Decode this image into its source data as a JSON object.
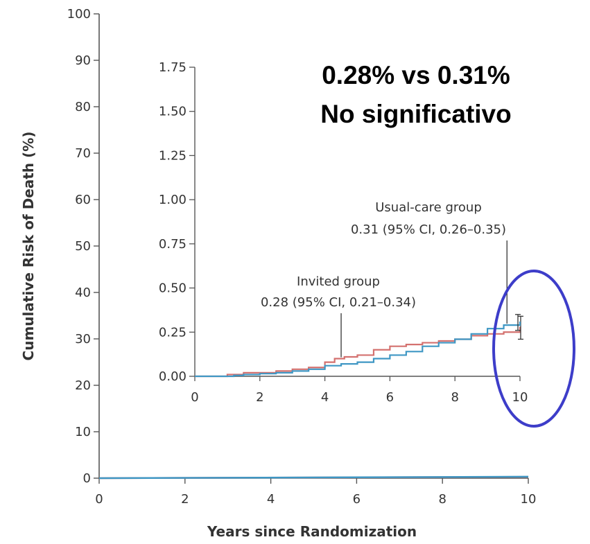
{
  "chart_data": [
    {
      "type": "line",
      "xlabel": "Years since Randomization",
      "ylabel": "Cumulative Risk of Death (%)",
      "xlim": [
        0,
        10
      ],
      "ylim": [
        0,
        100
      ],
      "x_ticks": [
        "0",
        "2",
        "4",
        "6",
        "8",
        "10"
      ],
      "y_ticks": [
        "0",
        "10",
        "20",
        "30",
        "40",
        "50",
        "60",
        "70",
        "80",
        "90",
        "100"
      ],
      "series": [
        {
          "name": "Invited group",
          "x": [
            0,
            10
          ],
          "y": [
            0,
            0.28
          ]
        },
        {
          "name": "Usual-care group",
          "x": [
            0,
            10
          ],
          "y": [
            0,
            0.31
          ]
        }
      ]
    },
    {
      "type": "line",
      "xlim": [
        0,
        10
      ],
      "ylim": [
        0,
        1.75
      ],
      "x_ticks": [
        "0",
        "2",
        "4",
        "6",
        "8",
        "10"
      ],
      "y_ticks": [
        "0.00",
        "0.25",
        "0.50",
        "0.75",
        "1.00",
        "1.25",
        "1.50",
        "1.75"
      ],
      "series": [
        {
          "name": "Invited group",
          "color": "#d4716f",
          "x": [
            0,
            0.6,
            1.0,
            1.5,
            2.0,
            2.5,
            3.0,
            3.5,
            4.0,
            4.3,
            4.6,
            5.0,
            5.5,
            6.0,
            6.5,
            7.0,
            7.5,
            8.0,
            8.5,
            9.0,
            9.5,
            10.0
          ],
          "y": [
            0,
            0.0,
            0.01,
            0.02,
            0.02,
            0.03,
            0.04,
            0.05,
            0.08,
            0.1,
            0.11,
            0.12,
            0.15,
            0.17,
            0.18,
            0.19,
            0.2,
            0.21,
            0.23,
            0.24,
            0.25,
            0.28
          ],
          "end_ci": [
            0.21,
            0.34
          ]
        },
        {
          "name": "Usual-care group",
          "color": "#3f97c4",
          "x": [
            0,
            0.8,
            1.2,
            1.5,
            2.0,
            2.5,
            3.0,
            3.5,
            4.0,
            4.5,
            5.0,
            5.5,
            6.0,
            6.5,
            7.0,
            7.5,
            8.0,
            8.5,
            9.0,
            9.5,
            10.0
          ],
          "y": [
            0,
            0.0,
            0.005,
            0.01,
            0.015,
            0.02,
            0.03,
            0.04,
            0.06,
            0.07,
            0.08,
            0.1,
            0.12,
            0.14,
            0.17,
            0.19,
            0.21,
            0.24,
            0.27,
            0.29,
            0.31
          ],
          "end_ci": [
            0.26,
            0.35
          ]
        }
      ],
      "annotations": [
        {
          "line1": "Invited group",
          "line2": "0.28 (95% CI, 0.21–0.34)",
          "x": 4.5,
          "y": 0.1
        },
        {
          "line1": "Usual-care group",
          "line2": "0.31 (95% CI, 0.26–0.35)",
          "x": 9.6,
          "y": 0.29
        }
      ]
    }
  ],
  "overlay": {
    "line1": "0.28% vs 0.31%",
    "line2": "No significativo",
    "circle_color": "#3d3dc9"
  }
}
